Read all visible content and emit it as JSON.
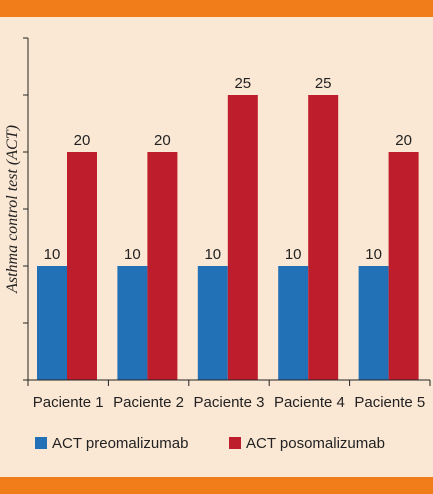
{
  "colors": {
    "band": "#f07d1a",
    "background": "#fbe8d4",
    "axis": "#222222",
    "series": [
      "#2271b7",
      "#be1d2c"
    ]
  },
  "chart_data": {
    "type": "bar",
    "title": "",
    "xlabel": "",
    "ylabel": "Asthma control test (ACT)",
    "categories": [
      "Paciente 1",
      "Paciente 2",
      "Paciente 3",
      "Paciente 4",
      "Paciente 5"
    ],
    "series": [
      {
        "name": "ACT preomalizumab",
        "values": [
          10,
          10,
          10,
          10,
          10
        ]
      },
      {
        "name": "ACT posomalizumab",
        "values": [
          20,
          20,
          25,
          25,
          20
        ]
      }
    ],
    "ylim": [
      0,
      30
    ],
    "ytick_step": 5,
    "show_ytick_labels": false,
    "data_labels": true,
    "grid": false,
    "legend_position": "bottom"
  }
}
